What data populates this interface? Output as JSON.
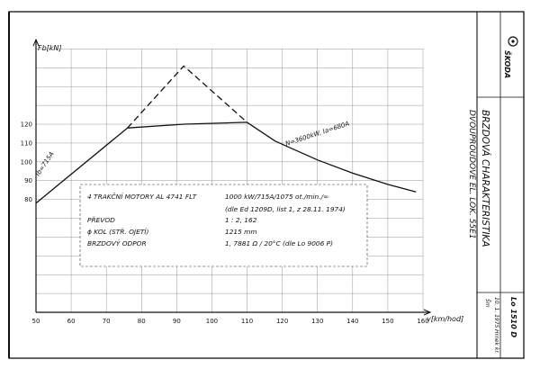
{
  "chart_data": {
    "type": "line",
    "xlabel": "v[km/hod]",
    "ylabel": "Fb[kN]",
    "x_ticks": [
      50,
      60,
      70,
      80,
      90,
      100,
      110,
      120,
      130,
      140,
      150,
      160
    ],
    "y_ticks": [
      80,
      90,
      100,
      110,
      120
    ],
    "xlim": [
      50,
      160
    ],
    "ylim": [
      20,
      165
    ],
    "grid": true,
    "series": [
      {
        "name": "",
        "style": "solid",
        "x": [
          50,
          76,
          92,
          110,
          118,
          130,
          140,
          150,
          158
        ],
        "y": [
          78,
          118,
          120,
          121,
          111,
          101,
          94,
          88,
          84
        ]
      },
      {
        "name": "",
        "style": "dashed",
        "x": [
          76,
          92,
          110
        ],
        "y": [
          118,
          151,
          121
        ]
      }
    ],
    "annotations": [
      {
        "text": "Ib=715A"
      },
      {
        "text": "N=3600kW, Ia=680A"
      }
    ]
  },
  "info_box": {
    "rows": [
      {
        "label": "4 TRAKČNÍ MOTORY AL 4741 FLT",
        "value": "1000 kW/715A/1075 ot./min./∞"
      },
      {
        "label": "",
        "value": "(dle Ed 1209D, list 1, z 28.11. 1974)"
      },
      {
        "label": "PŘEVOD",
        "value": "1 : 2, 162"
      },
      {
        "label": "ϕ KOL (STŘ. OJETÍ)",
        "value": "1215 mm"
      },
      {
        "label": "BRZDOVÝ ODPOR",
        "value": "1, 7881 Ω / 20°C   (dle Lo 9006 P)"
      }
    ]
  },
  "side_title": {
    "line1": "BRZDOVÁ CHARAKTERISTIKA",
    "line2": "DVOUPROUDOVÉ EL. LOK. 55E1"
  },
  "title_block": {
    "brand": "ŠKODA",
    "drawing_no": "Lo 1510 D",
    "date": "10. 1. 1975",
    "signature": "Šm",
    "checked": "Hrnek kr."
  },
  "colors": {
    "line": "#111111",
    "grid": "#8a8a8a",
    "paper": "#ffffff"
  }
}
